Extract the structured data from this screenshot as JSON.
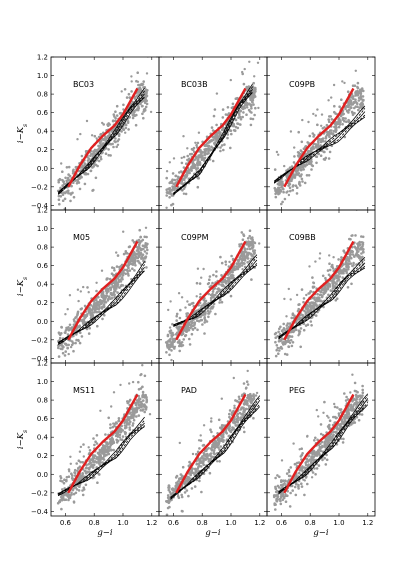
{
  "figure": {
    "xlabel": "g−i",
    "ylabel": "i−K",
    "ylabel_subscript": "s"
  },
  "chart_data": {
    "type": "scatter",
    "layout": "3x3",
    "xlim": [
      0.5,
      1.25
    ],
    "ylim": [
      -0.45,
      1.2
    ],
    "xticks": [
      "0.6",
      "0.8",
      "1.0",
      "1.2"
    ],
    "yticks": [
      "−0.4",
      "−0.2",
      "0.0",
      "0.2",
      "0.4",
      "0.6",
      "0.8",
      "1.0",
      "1.2"
    ],
    "grey_cloud": {
      "color": "#9a9a9a",
      "ridge": [
        [
          0.55,
          -0.27
        ],
        [
          0.65,
          -0.12
        ],
        [
          0.75,
          0.05
        ],
        [
          0.85,
          0.22
        ],
        [
          0.95,
          0.42
        ],
        [
          1.05,
          0.63
        ],
        [
          1.12,
          0.78
        ]
      ]
    },
    "red_curve": {
      "color": "#e02020",
      "x": [
        0.62,
        0.7,
        0.78,
        0.86,
        0.94,
        1.0,
        1.05,
        1.1
      ],
      "y": [
        -0.2,
        0.03,
        0.22,
        0.35,
        0.46,
        0.58,
        0.72,
        0.86
      ]
    },
    "panels": [
      {
        "label": "BC03",
        "model": [
          [
            0.55,
            -0.27
          ],
          [
            0.75,
            0.0
          ],
          [
            0.95,
            0.38
          ],
          [
            1.05,
            0.62
          ],
          [
            1.15,
            0.8
          ]
        ]
      },
      {
        "label": "BC03B",
        "model": [
          [
            0.6,
            -0.28
          ],
          [
            0.78,
            -0.05
          ],
          [
            0.95,
            0.35
          ],
          [
            1.05,
            0.65
          ],
          [
            1.15,
            0.85
          ]
        ]
      },
      {
        "label": "C09PB",
        "model": [
          [
            0.55,
            -0.15
          ],
          [
            0.7,
            0.02
          ],
          [
            0.85,
            0.18
          ],
          [
            1.0,
            0.33
          ],
          [
            1.18,
            0.6
          ]
        ]
      },
      {
        "label": "M05",
        "model": [
          [
            0.55,
            -0.24
          ],
          [
            0.75,
            -0.05
          ],
          [
            0.95,
            0.2
          ],
          [
            1.05,
            0.38
          ],
          [
            1.15,
            0.58
          ]
        ]
      },
      {
        "label": "C09PM",
        "model": [
          [
            0.6,
            -0.05
          ],
          [
            0.75,
            0.05
          ],
          [
            0.95,
            0.3
          ],
          [
            1.05,
            0.45
          ],
          [
            1.18,
            0.65
          ]
        ]
      },
      {
        "label": "C09BB",
        "model": [
          [
            0.58,
            -0.18
          ],
          [
            0.75,
            0.0
          ],
          [
            0.95,
            0.25
          ],
          [
            1.05,
            0.45
          ],
          [
            1.18,
            0.62
          ]
        ]
      },
      {
        "label": "MS11",
        "model": [
          [
            0.55,
            -0.22
          ],
          [
            0.75,
            -0.05
          ],
          [
            0.95,
            0.2
          ],
          [
            1.05,
            0.4
          ],
          [
            1.15,
            0.55
          ]
        ]
      },
      {
        "label": "PAD",
        "model": [
          [
            0.58,
            -0.26
          ],
          [
            0.75,
            -0.05
          ],
          [
            0.95,
            0.25
          ],
          [
            1.08,
            0.55
          ],
          [
            1.2,
            0.78
          ]
        ]
      },
      {
        "label": "PEG",
        "model": [
          [
            0.58,
            -0.2
          ],
          [
            0.75,
            -0.02
          ],
          [
            0.95,
            0.3
          ],
          [
            1.08,
            0.58
          ],
          [
            1.2,
            0.8
          ]
        ]
      }
    ]
  }
}
